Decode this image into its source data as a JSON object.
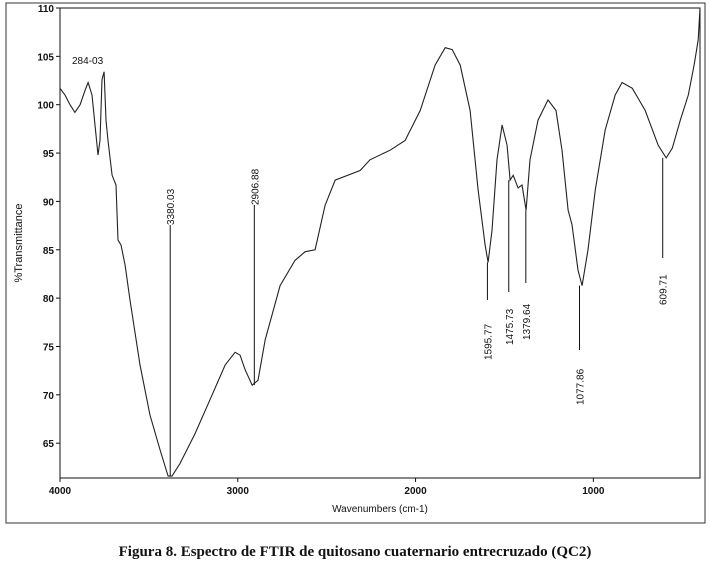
{
  "chart_data": {
    "type": "line",
    "caption": "Figura 8. Espectro de FTIR de  quitosano cuaternario entrecruzado (QC2)",
    "x_label": "Wavenumbers (cm-1)",
    "y_label": "%Transmittance",
    "xlim": [
      4000,
      400
    ],
    "ylim": [
      61.4,
      110
    ],
    "xticks": [
      4000,
      3000,
      2000,
      1000
    ],
    "yticks": [
      65,
      70,
      75,
      80,
      85,
      90,
      95,
      100,
      105,
      110
    ],
    "note": "284-03",
    "x": [
      4000,
      3972,
      3944,
      3916,
      3887,
      3859,
      3842,
      3820,
      3803,
      3786,
      3775,
      3764,
      3752,
      3741,
      3730,
      3707,
      3685,
      3674,
      3657,
      3634,
      3606,
      3550,
      3494,
      3437,
      3392,
      3370,
      3325,
      3240,
      3156,
      3071,
      3015,
      2987,
      2959,
      2919,
      2886,
      2846,
      2762,
      2678,
      2621,
      2565,
      2509,
      2452,
      2312,
      2256,
      2143,
      2059,
      1974,
      1890,
      1833,
      1794,
      1749,
      1693,
      1648,
      1609,
      1592,
      1570,
      1542,
      1513,
      1485,
      1468,
      1451,
      1423,
      1401,
      1378,
      1356,
      1311,
      1255,
      1210,
      1176,
      1142,
      1120,
      1086,
      1063,
      1030,
      989,
      933,
      877,
      838,
      781,
      708,
      635,
      590,
      556,
      511,
      466,
      433,
      410,
      400
    ],
    "series": [
      {
        "color": "#222222",
        "values": [
          101.7,
          101,
          100,
          99.2,
          100,
          101.5,
          102.3,
          101,
          97.9,
          94.8,
          96.3,
          102.6,
          103.4,
          98.4,
          96.3,
          92.7,
          91.7,
          86,
          85.5,
          83.4,
          79.8,
          73.1,
          67.9,
          64.3,
          61.6,
          61.6,
          62.9,
          66,
          69.5,
          73.1,
          74.4,
          74.1,
          72.6,
          71,
          71.5,
          75.7,
          81.3,
          83.9,
          84.8,
          85,
          89.6,
          92.2,
          93.2,
          94.3,
          95.3,
          96.3,
          99.4,
          104.1,
          105.9,
          105.7,
          104.1,
          99.4,
          91.2,
          85.5,
          83.7,
          87,
          94.3,
          97.9,
          95.8,
          92.2,
          92.7,
          91.4,
          91.7,
          89.1,
          94.3,
          98.4,
          100.5,
          99.4,
          95.3,
          89.1,
          87.6,
          82.9,
          81.3,
          85,
          91.2,
          97.4,
          101,
          102.3,
          101.7,
          99.4,
          95.8,
          94.5,
          95.5,
          98.4,
          101,
          104.1,
          106.7,
          110
        ]
      }
    ],
    "annotations": [
      {
        "label": "3380.03",
        "x": 3380.03,
        "y": 61.6
      },
      {
        "label": "2906.88",
        "x": 2906.88,
        "y": 71
      },
      {
        "label": "1595.77",
        "x": 1595.77,
        "y": 83.7
      },
      {
        "label": "1475.73",
        "x": 1475.73,
        "y": 92.2
      },
      {
        "label": "1379.64",
        "x": 1379.64,
        "y": 89.1
      },
      {
        "label": "1077.86",
        "x": 1077.86,
        "y": 81.3
      },
      {
        "label": "609.71",
        "x": 609.71,
        "y": 94.5
      }
    ]
  }
}
